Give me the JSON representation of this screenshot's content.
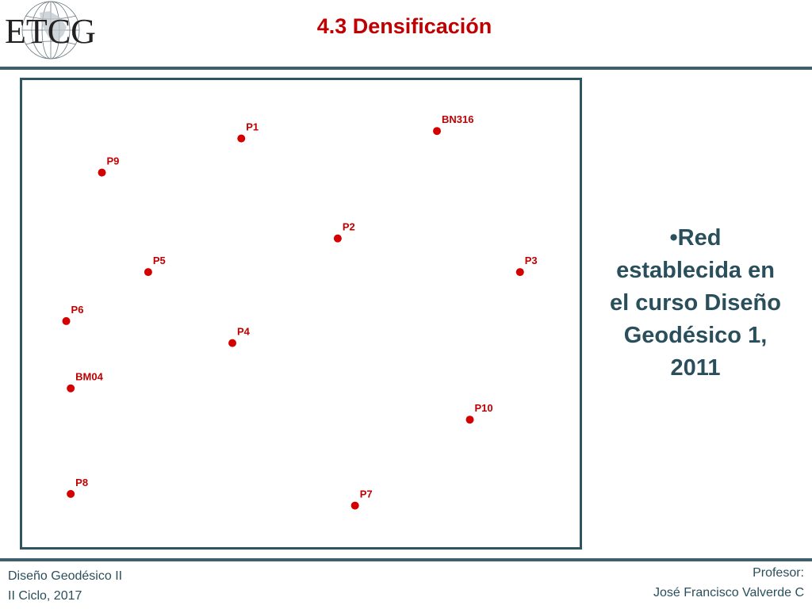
{
  "header": {
    "logo_text": "ETCG",
    "title": "4.3 Densificación"
  },
  "map": {
    "points": [
      {
        "name": "P1",
        "x": 0.393,
        "y": 0.125
      },
      {
        "name": "BN316",
        "x": 0.744,
        "y": 0.109
      },
      {
        "name": "P9",
        "x": 0.143,
        "y": 0.198
      },
      {
        "name": "P2",
        "x": 0.566,
        "y": 0.339
      },
      {
        "name": "P5",
        "x": 0.226,
        "y": 0.411
      },
      {
        "name": "P3",
        "x": 0.893,
        "y": 0.411
      },
      {
        "name": "P6",
        "x": 0.079,
        "y": 0.516
      },
      {
        "name": "P4",
        "x": 0.377,
        "y": 0.563
      },
      {
        "name": "BM04",
        "x": 0.087,
        "y": 0.66
      },
      {
        "name": "P10",
        "x": 0.803,
        "y": 0.727
      },
      {
        "name": "P8",
        "x": 0.087,
        "y": 0.886
      },
      {
        "name": "P7",
        "x": 0.597,
        "y": 0.911
      }
    ],
    "point_color": "#d40000"
  },
  "bullet": {
    "line1": "•Red",
    "line2": "establecida en",
    "line3": "el curso Diseño",
    "line4": "Geodésico 1,",
    "line5": "2011"
  },
  "footer": {
    "course": "Diseño Geodésico II",
    "term": "II Ciclo, 2017",
    "role": "Profesor:",
    "professor": "José Francisco Valverde C"
  },
  "colors": {
    "title": "#c00000",
    "text": "#2a4f5c",
    "rule": "#3d5e6a"
  }
}
